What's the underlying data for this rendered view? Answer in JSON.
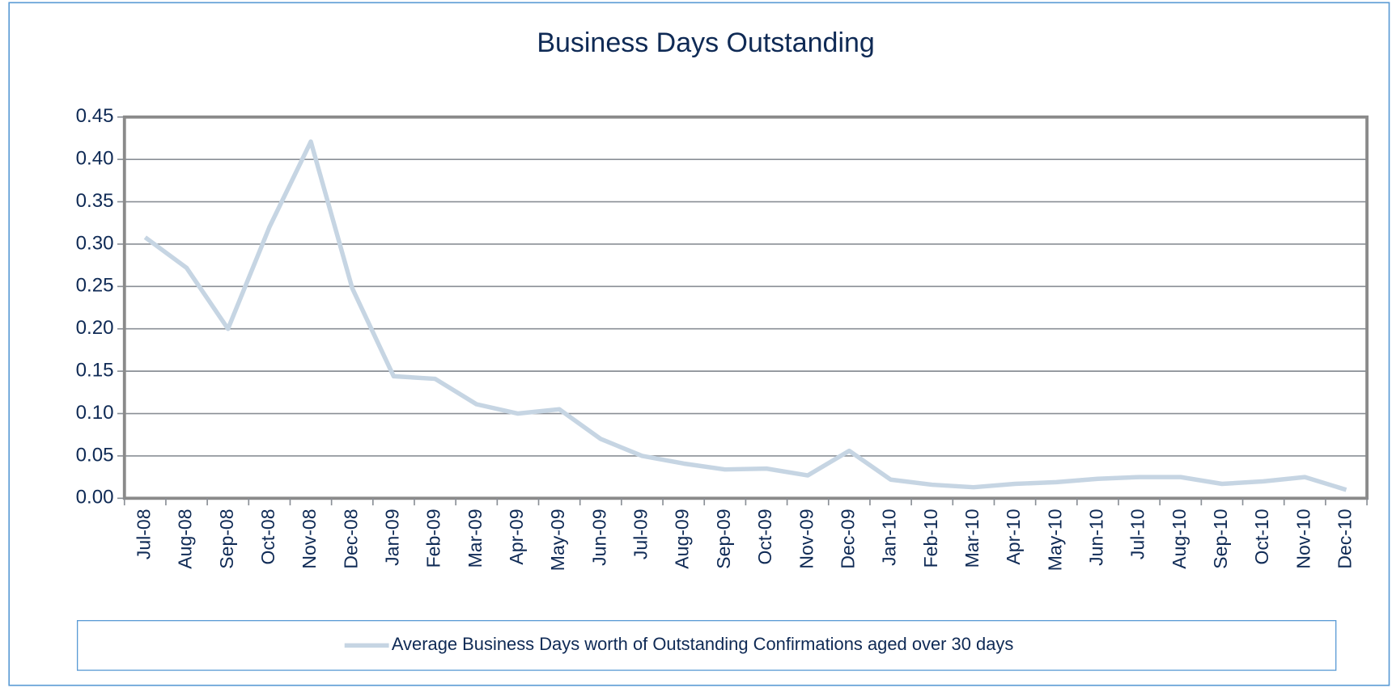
{
  "chart_data": {
    "type": "line",
    "title": "Business Days Outstanding",
    "categories": [
      "Jul-08",
      "Aug-08",
      "Sep-08",
      "Oct-08",
      "Nov-08",
      "Dec-08",
      "Jan-09",
      "Feb-09",
      "Mar-09",
      "Apr-09",
      "May-09",
      "Jun-09",
      "Jul-09",
      "Aug-09",
      "Sep-09",
      "Oct-09",
      "Nov-09",
      "Dec-09",
      "Jan-10",
      "Feb-10",
      "Mar-10",
      "Apr-10",
      "May-10",
      "Jun-10",
      "Jul-10",
      "Aug-10",
      "Sep-10",
      "Oct-10",
      "Nov-10",
      "Dec-10"
    ],
    "series": [
      {
        "name": "Average Business Days worth of Outstanding Confirmations aged over 30 days",
        "color": "#c6d5e3",
        "values": [
          0.308,
          0.272,
          0.2,
          0.32,
          0.421,
          0.248,
          0.144,
          0.141,
          0.111,
          0.1,
          0.105,
          0.07,
          0.05,
          0.041,
          0.034,
          0.035,
          0.027,
          0.056,
          0.022,
          0.016,
          0.013,
          0.017,
          0.019,
          0.023,
          0.025,
          0.025,
          0.017,
          0.02,
          0.025,
          0.01
        ]
      }
    ],
    "ylim": [
      0,
      0.45
    ],
    "yticks": [
      {
        "value": 0,
        "label": "0.00"
      },
      {
        "value": 0.05,
        "label": "0.05"
      },
      {
        "value": 0.1,
        "label": "0.10"
      },
      {
        "value": 0.15,
        "label": "0.15"
      },
      {
        "value": 0.2,
        "label": "0.20"
      },
      {
        "value": 0.25,
        "label": "0.25"
      },
      {
        "value": 0.3,
        "label": "0.30"
      },
      {
        "value": 0.35,
        "label": "0.35"
      },
      {
        "value": 0.4,
        "label": "0.40"
      },
      {
        "value": 0.45,
        "label": "0.45"
      }
    ],
    "grid": true,
    "legend": "bottom"
  }
}
